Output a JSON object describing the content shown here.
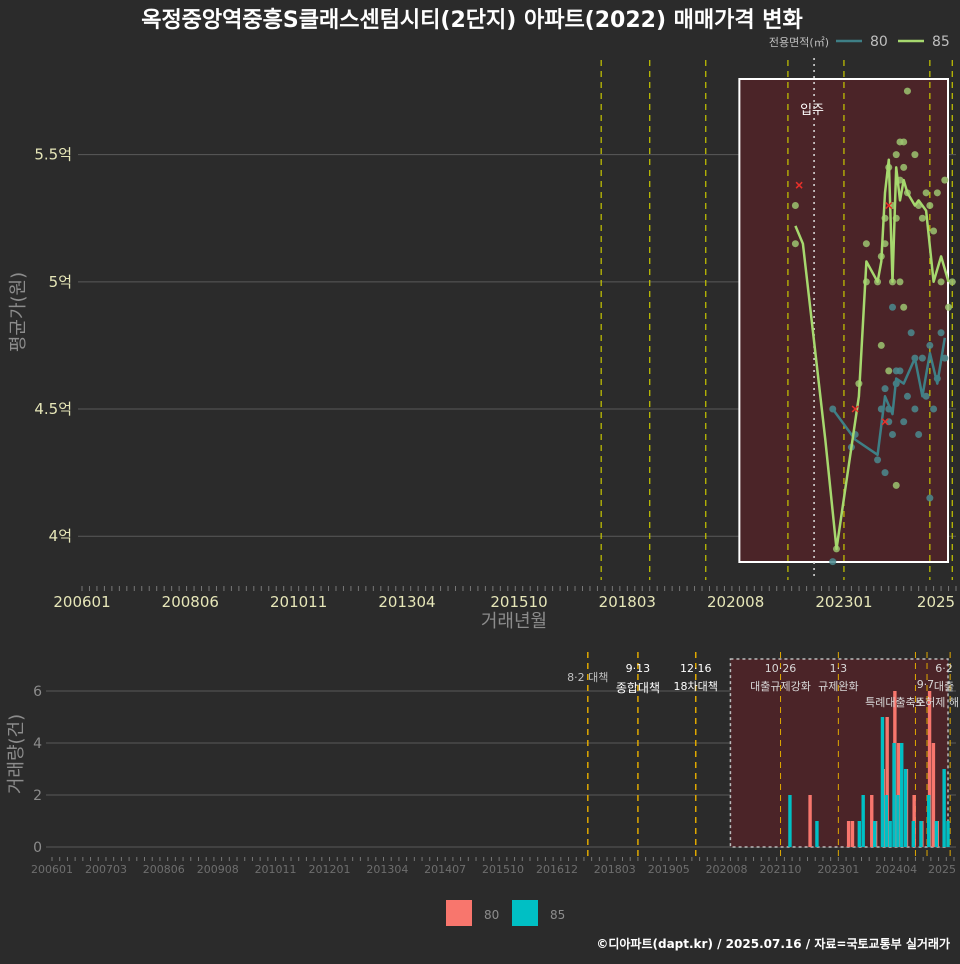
{
  "title": "옥정중앙역중흥S클래스센텀시티(2단지) 아파트(2022) 매매가격 변화",
  "footer": "©디아파트(dapt.kr) / 2025.07.16 / 자료=국토교통부 실거래가",
  "colors": {
    "background": "#2b2b2b",
    "series_80_line": "#3e7f86",
    "series_85_line": "#a6d86e",
    "bar_80": "#f8766d",
    "bar_85": "#00bfc4",
    "highlight_fill": "#4b2428",
    "policy_line": "#e0a800",
    "policy_line_top": "#c8c800",
    "marker_x": "#e8302a"
  },
  "chart_data": [
    {
      "type": "line",
      "title": "옥정중앙역중흥S클래스센텀시티(2단지) 아파트(2022) 매매가격 변화",
      "xlabel": "거래년월",
      "ylabel": "평균가(원)",
      "x_tick_labels": [
        "200601",
        "200806",
        "201011",
        "201304",
        "201510",
        "201803",
        "202008",
        "202301",
        "2025"
      ],
      "y_tick_labels": [
        "4억",
        "4.5억",
        "5억",
        "5.5억"
      ],
      "y_ticks": [
        4.0,
        4.5,
        5.0,
        5.5
      ],
      "ylim": [
        3.82,
        5.88
      ],
      "xlim": [
        "2006-01",
        "2025-07"
      ],
      "legend": {
        "title": "전용면적(㎡)",
        "position": "top-right",
        "entries": [
          "80",
          "85"
        ]
      },
      "annotation": {
        "label": "입주",
        "x": "2022-05"
      },
      "highlight_range": [
        "2020-09",
        "2025-07"
      ],
      "policy_lines": [
        "2017-08",
        "2018-09",
        "2019-12",
        "2021-10",
        "2023-01",
        "2024-12",
        "2025-06"
      ],
      "series": [
        {
          "name": "80",
          "line": [
            {
              "x": "2022-10",
              "y": 4.5
            },
            {
              "x": "2023-04",
              "y": 4.38
            },
            {
              "x": "2023-10",
              "y": 4.32
            },
            {
              "x": "2023-12",
              "y": 4.55
            },
            {
              "x": "2024-02",
              "y": 4.48
            },
            {
              "x": "2024-03",
              "y": 4.62
            },
            {
              "x": "2024-05",
              "y": 4.6
            },
            {
              "x": "2024-08",
              "y": 4.7
            },
            {
              "x": "2024-10",
              "y": 4.55
            },
            {
              "x": "2024-12",
              "y": 4.72
            },
            {
              "x": "2025-02",
              "y": 4.6
            },
            {
              "x": "2025-04",
              "y": 4.78
            }
          ],
          "points": [
            {
              "x": "2022-10",
              "y": 4.5
            },
            {
              "x": "2022-10",
              "y": 3.9
            },
            {
              "x": "2023-03",
              "y": 4.35
            },
            {
              "x": "2023-04",
              "y": 4.4
            },
            {
              "x": "2023-10",
              "y": 4.3
            },
            {
              "x": "2023-11",
              "y": 4.5
            },
            {
              "x": "2023-12",
              "y": 4.58
            },
            {
              "x": "2023-12",
              "y": 4.25
            },
            {
              "x": "2024-01",
              "y": 4.5
            },
            {
              "x": "2024-01",
              "y": 4.45
            },
            {
              "x": "2024-02",
              "y": 4.4
            },
            {
              "x": "2024-02",
              "y": 4.9
            },
            {
              "x": "2024-03",
              "y": 4.65
            },
            {
              "x": "2024-03",
              "y": 4.6
            },
            {
              "x": "2024-04",
              "y": 4.65
            },
            {
              "x": "2024-05",
              "y": 4.45
            },
            {
              "x": "2024-06",
              "y": 4.55
            },
            {
              "x": "2024-07",
              "y": 4.8
            },
            {
              "x": "2024-08",
              "y": 4.7
            },
            {
              "x": "2024-08",
              "y": 4.5
            },
            {
              "x": "2024-09",
              "y": 4.4
            },
            {
              "x": "2024-10",
              "y": 4.7
            },
            {
              "x": "2024-11",
              "y": 4.55
            },
            {
              "x": "2024-12",
              "y": 4.75
            },
            {
              "x": "2024-12",
              "y": 4.15
            },
            {
              "x": "2025-01",
              "y": 4.5
            },
            {
              "x": "2025-02",
              "y": 4.62
            },
            {
              "x": "2025-03",
              "y": 4.8
            },
            {
              "x": "2025-04",
              "y": 4.7
            }
          ]
        },
        {
          "name": "85",
          "line": [
            {
              "x": "2021-12",
              "y": 5.22
            },
            {
              "x": "2022-02",
              "y": 5.15
            },
            {
              "x": "2022-08",
              "y": 4.38
            },
            {
              "x": "2022-11",
              "y": 3.95
            },
            {
              "x": "2023-05",
              "y": 4.55
            },
            {
              "x": "2023-07",
              "y": 5.08
            },
            {
              "x": "2023-10",
              "y": 5.0
            },
            {
              "x": "2023-11",
              "y": 5.08
            },
            {
              "x": "2023-12",
              "y": 5.35
            },
            {
              "x": "2024-01",
              "y": 5.48
            },
            {
              "x": "2024-02",
              "y": 5.0
            },
            {
              "x": "2024-03",
              "y": 5.45
            },
            {
              "x": "2024-04",
              "y": 5.32
            },
            {
              "x": "2024-05",
              "y": 5.4
            },
            {
              "x": "2024-06",
              "y": 5.35
            },
            {
              "x": "2024-08",
              "y": 5.3
            },
            {
              "x": "2024-09",
              "y": 5.32
            },
            {
              "x": "2024-11",
              "y": 5.28
            },
            {
              "x": "2025-01",
              "y": 5.0
            },
            {
              "x": "2025-03",
              "y": 5.1
            },
            {
              "x": "2025-05",
              "y": 5.0
            }
          ],
          "points": [
            {
              "x": "2021-12",
              "y": 5.3
            },
            {
              "x": "2021-12",
              "y": 5.15
            },
            {
              "x": "2022-11",
              "y": 3.95
            },
            {
              "x": "2023-05",
              "y": 4.6
            },
            {
              "x": "2023-07",
              "y": 5.15
            },
            {
              "x": "2023-07",
              "y": 5.0
            },
            {
              "x": "2023-10",
              "y": 5.0
            },
            {
              "x": "2023-11",
              "y": 5.1
            },
            {
              "x": "2023-11",
              "y": 4.75
            },
            {
              "x": "2023-12",
              "y": 5.15
            },
            {
              "x": "2023-12",
              "y": 5.25
            },
            {
              "x": "2024-01",
              "y": 5.45
            },
            {
              "x": "2024-01",
              "y": 4.65
            },
            {
              "x": "2024-02",
              "y": 5.0
            },
            {
              "x": "2024-02",
              "y": 5.3
            },
            {
              "x": "2024-03",
              "y": 5.5
            },
            {
              "x": "2024-03",
              "y": 5.25
            },
            {
              "x": "2024-03",
              "y": 4.2
            },
            {
              "x": "2024-04",
              "y": 5.55
            },
            {
              "x": "2024-04",
              "y": 5.0
            },
            {
              "x": "2024-04",
              "y": 5.4
            },
            {
              "x": "2024-05",
              "y": 5.45
            },
            {
              "x": "2024-05",
              "y": 4.9
            },
            {
              "x": "2024-05",
              "y": 5.55
            },
            {
              "x": "2024-06",
              "y": 5.75
            },
            {
              "x": "2024-06",
              "y": 5.35
            },
            {
              "x": "2024-08",
              "y": 5.5
            },
            {
              "x": "2024-09",
              "y": 5.3
            },
            {
              "x": "2024-10",
              "y": 5.25
            },
            {
              "x": "2024-11",
              "y": 5.35
            },
            {
              "x": "2024-12",
              "y": 5.3
            },
            {
              "x": "2025-01",
              "y": 5.2
            },
            {
              "x": "2025-02",
              "y": 5.35
            },
            {
              "x": "2025-03",
              "y": 5.0
            },
            {
              "x": "2025-04",
              "y": 5.4
            },
            {
              "x": "2025-05",
              "y": 4.9
            },
            {
              "x": "2025-06",
              "y": 5.0
            }
          ]
        }
      ],
      "x_markers": [
        {
          "x": "2022-01",
          "y": 5.38
        },
        {
          "x": "2023-04",
          "y": 4.5
        },
        {
          "x": "2023-12",
          "y": 4.45
        },
        {
          "x": "2024-01",
          "y": 5.3
        }
      ]
    },
    {
      "type": "bar",
      "xlabel": "",
      "ylabel": "거래량(건)",
      "x_tick_labels": [
        "200601",
        "200703",
        "200806",
        "200908",
        "201011",
        "201201",
        "201304",
        "201407",
        "201510",
        "201612",
        "201803",
        "201905",
        "202008",
        "202110",
        "202301",
        "202404",
        "2025"
      ],
      "y_tick_labels": [
        "0",
        "2",
        "4",
        "6"
      ],
      "y_ticks": [
        0,
        2,
        4,
        6
      ],
      "ylim": [
        -0.5,
        7.3
      ],
      "legend": {
        "position": "bottom",
        "entries": [
          "80",
          "85"
        ]
      },
      "highlight_range": [
        "2020-09",
        "2025-07"
      ],
      "policy_events": [
        {
          "x": "2017-08",
          "date": "8·2 대책",
          "label": ""
        },
        {
          "x": "2018-09",
          "date": "9·13",
          "label": "종합대책"
        },
        {
          "x": "2019-12",
          "date": "12·16",
          "label": "18차대책"
        },
        {
          "x": "2021-10",
          "date": "10·26",
          "label": "대출규제강화"
        },
        {
          "x": "2023-01",
          "date": "1·3",
          "label": "규제완화"
        },
        {
          "x": "2024-09",
          "date": "9·7",
          "label": "특례대출축소"
        },
        {
          "x": "2024-12",
          "date": "",
          "label": "토허제 해"
        },
        {
          "x": "2025-06",
          "date": "6·2",
          "label": "대출"
        }
      ],
      "series": [
        {
          "name": "80",
          "values": [
            {
              "x": "2022-06",
              "y": 2
            },
            {
              "x": "2023-04",
              "y": 1
            },
            {
              "x": "2023-05",
              "y": 1
            },
            {
              "x": "2023-10",
              "y": 2
            },
            {
              "x": "2023-11",
              "y": 1
            },
            {
              "x": "2024-01",
              "y": 3
            },
            {
              "x": "2024-02",
              "y": 5
            },
            {
              "x": "2024-04",
              "y": 6
            },
            {
              "x": "2024-05",
              "y": 4
            },
            {
              "x": "2024-07",
              "y": 3
            },
            {
              "x": "2024-09",
              "y": 2
            },
            {
              "x": "2024-11",
              "y": 1
            },
            {
              "x": "2025-01",
              "y": 6
            },
            {
              "x": "2025-02",
              "y": 4
            },
            {
              "x": "2025-03",
              "y": 1
            }
          ]
        },
        {
          "name": "85",
          "values": [
            {
              "x": "2021-12",
              "y": 2
            },
            {
              "x": "2022-07",
              "y": 1
            },
            {
              "x": "2023-06",
              "y": 1
            },
            {
              "x": "2023-07",
              "y": 2
            },
            {
              "x": "2023-10",
              "y": 1
            },
            {
              "x": "2023-12",
              "y": 5
            },
            {
              "x": "2024-01",
              "y": 2
            },
            {
              "x": "2024-02",
              "y": 1
            },
            {
              "x": "2024-03",
              "y": 4
            },
            {
              "x": "2024-04",
              "y": 2
            },
            {
              "x": "2024-05",
              "y": 4
            },
            {
              "x": "2024-06",
              "y": 3
            },
            {
              "x": "2024-08",
              "y": 1
            },
            {
              "x": "2024-10",
              "y": 1
            },
            {
              "x": "2024-12",
              "y": 2
            },
            {
              "x": "2025-02",
              "y": 1
            },
            {
              "x": "2025-04",
              "y": 3
            },
            {
              "x": "2025-05",
              "y": 1
            }
          ]
        }
      ]
    }
  ]
}
